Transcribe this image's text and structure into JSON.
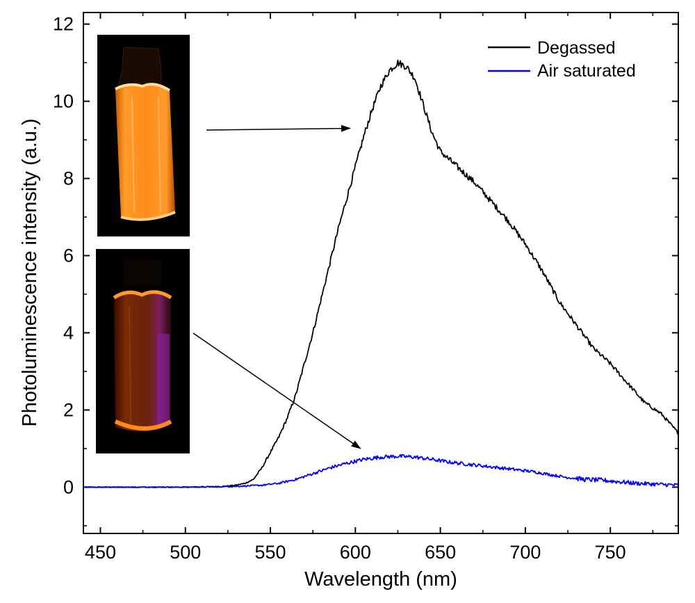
{
  "chart_data": {
    "type": "line",
    "title": "",
    "xlabel": "Wavelength (nm)",
    "ylabel": "Photoluminescence intensity (a.u.)",
    "xlim": [
      440,
      790
    ],
    "ylim": [
      -1.2,
      12.3
    ],
    "x_ticks": [
      450,
      500,
      550,
      600,
      650,
      700,
      750
    ],
    "y_ticks": [
      0,
      2,
      4,
      6,
      8,
      10,
      12
    ],
    "legend_position": "top-right",
    "series": [
      {
        "name": "Degassed",
        "color": "#000000",
        "points": [
          [
            440,
            0
          ],
          [
            500,
            0
          ],
          [
            520,
            0.01
          ],
          [
            530,
            0.05
          ],
          [
            535,
            0.1
          ],
          [
            540,
            0.2
          ],
          [
            545,
            0.5
          ],
          [
            550,
            0.9
          ],
          [
            555,
            1.3
          ],
          [
            560,
            1.8
          ],
          [
            565,
            2.4
          ],
          [
            570,
            3.2
          ],
          [
            575,
            4.0
          ],
          [
            580,
            4.9
          ],
          [
            585,
            5.8
          ],
          [
            590,
            6.7
          ],
          [
            595,
            7.5
          ],
          [
            600,
            8.3
          ],
          [
            605,
            9.1
          ],
          [
            610,
            9.8
          ],
          [
            615,
            10.4
          ],
          [
            620,
            10.8
          ],
          [
            625,
            11.0
          ],
          [
            630,
            10.9
          ],
          [
            635,
            10.6
          ],
          [
            640,
            9.9
          ],
          [
            645,
            9.2
          ],
          [
            650,
            8.7
          ],
          [
            655,
            8.5
          ],
          [
            660,
            8.3
          ],
          [
            670,
            7.9
          ],
          [
            680,
            7.4
          ],
          [
            690,
            6.9
          ],
          [
            700,
            6.3
          ],
          [
            710,
            5.6
          ],
          [
            720,
            4.8
          ],
          [
            730,
            4.2
          ],
          [
            740,
            3.6
          ],
          [
            750,
            3.2
          ],
          [
            760,
            2.7
          ],
          [
            770,
            2.2
          ],
          [
            780,
            1.9
          ],
          [
            790,
            1.4
          ]
        ]
      },
      {
        "name": "Air saturated",
        "color": "#0000ff",
        "points": [
          [
            440,
            0
          ],
          [
            500,
            0
          ],
          [
            530,
            0.02
          ],
          [
            545,
            0.05
          ],
          [
            555,
            0.1
          ],
          [
            565,
            0.2
          ],
          [
            575,
            0.35
          ],
          [
            585,
            0.5
          ],
          [
            595,
            0.62
          ],
          [
            605,
            0.72
          ],
          [
            615,
            0.78
          ],
          [
            625,
            0.8
          ],
          [
            635,
            0.78
          ],
          [
            645,
            0.72
          ],
          [
            655,
            0.65
          ],
          [
            665,
            0.6
          ],
          [
            675,
            0.55
          ],
          [
            685,
            0.5
          ],
          [
            695,
            0.45
          ],
          [
            705,
            0.4
          ],
          [
            715,
            0.32
          ],
          [
            725,
            0.25
          ],
          [
            735,
            0.2
          ],
          [
            745,
            0.18
          ],
          [
            755,
            0.14
          ],
          [
            765,
            0.1
          ],
          [
            775,
            0.08
          ],
          [
            790,
            0.05
          ]
        ]
      }
    ],
    "annotations": [
      {
        "type": "arrow",
        "from": "inset-degassed",
        "to_data": [
          597,
          9.3
        ]
      },
      {
        "type": "arrow",
        "from": "inset-air-saturated",
        "to_data": [
          603,
          1.0
        ]
      }
    ]
  }
}
